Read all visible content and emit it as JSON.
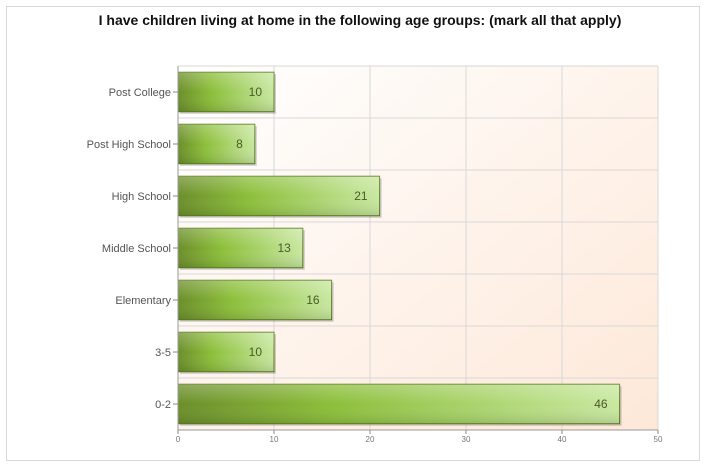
{
  "chart_data": {
    "type": "bar",
    "orientation": "horizontal",
    "title": "I have children living at home in the following age groups: (mark all that apply)",
    "categories": [
      "Post College",
      "Post High School",
      "High School",
      "Middle School",
      "Elementary",
      "3-5",
      "0-2"
    ],
    "values": [
      10,
      8,
      21,
      13,
      16,
      10,
      46
    ],
    "xlim": [
      0,
      50
    ],
    "xticks": [
      0,
      10,
      20,
      30,
      40,
      50
    ],
    "grid": true,
    "colors": {
      "bar_dark": "#6b8e2a",
      "bar_mid": "#8cbf3a",
      "bar_light": "#c8e8a0",
      "plot_bg_light": "#ffffff",
      "plot_bg_warm": "#fde8d8",
      "grid": "#d8d8d8"
    }
  }
}
